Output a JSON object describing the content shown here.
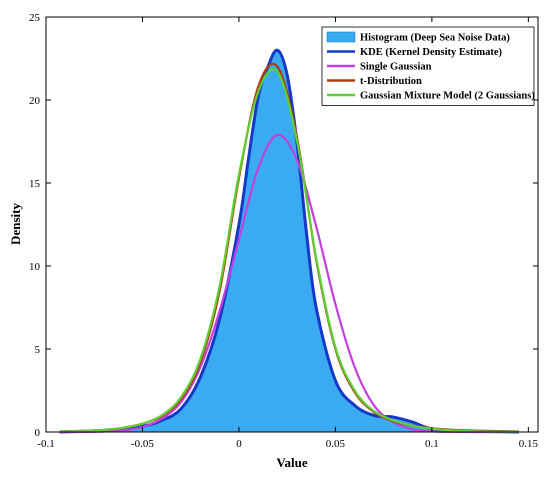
{
  "chart_data": {
    "type": "area",
    "title": "",
    "xlabel": "Value",
    "ylabel": "Density",
    "xlim": [
      -0.1,
      0.155
    ],
    "ylim": [
      0,
      25
    ],
    "x_ticks": [
      -0.1,
      -0.05,
      0,
      0.05,
      0.1,
      0.15
    ],
    "x_tick_labels": [
      "-0.1",
      "-0.05",
      "0",
      "0.05",
      "0.1",
      "0.15"
    ],
    "y_ticks": [
      0,
      5,
      10,
      15,
      20,
      25
    ],
    "y_tick_labels": [
      "0",
      "5",
      "10",
      "15",
      "20",
      "25"
    ],
    "grid": false,
    "legend_position": "top-right",
    "series": [
      {
        "name": "Histogram (Deep Sea Noise Data)",
        "kind": "histogram",
        "color": "#3aabf0",
        "x": [
          -0.093,
          -0.07,
          -0.05,
          -0.04,
          -0.03,
          -0.02,
          -0.01,
          0.0,
          0.005,
          0.01,
          0.015,
          0.02,
          0.025,
          0.03,
          0.035,
          0.04,
          0.05,
          0.06,
          0.07,
          0.08,
          0.09,
          0.1,
          0.12,
          0.145
        ],
        "y": [
          0.0,
          0.1,
          0.35,
          0.7,
          1.4,
          3.3,
          6.8,
          12.5,
          16.5,
          20.2,
          22.0,
          23.0,
          21.5,
          17.5,
          12.0,
          7.5,
          3.1,
          1.6,
          1.0,
          0.9,
          0.6,
          0.2,
          0.05,
          0.0
        ]
      },
      {
        "name": "KDE (Kernel Density Estimate)",
        "kind": "line",
        "color": "#1538c8",
        "x": [
          -0.093,
          -0.07,
          -0.05,
          -0.04,
          -0.03,
          -0.02,
          -0.01,
          0.0,
          0.005,
          0.01,
          0.015,
          0.02,
          0.025,
          0.03,
          0.035,
          0.04,
          0.05,
          0.06,
          0.07,
          0.08,
          0.09,
          0.1,
          0.12,
          0.145
        ],
        "y": [
          0.0,
          0.1,
          0.35,
          0.7,
          1.4,
          3.3,
          6.8,
          12.5,
          16.5,
          20.2,
          22.0,
          23.0,
          21.5,
          17.5,
          12.0,
          7.5,
          3.1,
          1.6,
          1.0,
          0.9,
          0.6,
          0.2,
          0.05,
          0.0
        ]
      },
      {
        "name": "Single Gaussian",
        "kind": "line",
        "color": "#c040e0",
        "x": [
          -0.093,
          -0.08,
          -0.07,
          -0.06,
          -0.05,
          -0.04,
          -0.03,
          -0.02,
          -0.01,
          0.0,
          0.01,
          0.02,
          0.03,
          0.04,
          0.05,
          0.06,
          0.07,
          0.08,
          0.09,
          0.1,
          0.11,
          0.12,
          0.13,
          0.145
        ],
        "y": [
          0.0,
          0.01,
          0.03,
          0.1,
          0.3,
          0.8,
          1.8,
          3.9,
          7.3,
          11.6,
          15.9,
          17.9,
          16.4,
          12.4,
          7.7,
          3.9,
          1.6,
          0.6,
          0.16,
          0.04,
          0.01,
          0.0,
          0.0,
          0.0
        ]
      },
      {
        "name": "t-Distribution",
        "kind": "line",
        "color": "#b03a10",
        "x": [
          -0.093,
          -0.08,
          -0.07,
          -0.06,
          -0.05,
          -0.04,
          -0.03,
          -0.02,
          -0.01,
          0.0,
          0.01,
          0.02,
          0.03,
          0.04,
          0.05,
          0.06,
          0.07,
          0.08,
          0.09,
          0.1,
          0.11,
          0.12,
          0.13,
          0.145
        ],
        "y": [
          0.03,
          0.07,
          0.12,
          0.25,
          0.5,
          0.95,
          2.0,
          4.2,
          8.5,
          15.3,
          20.8,
          22.0,
          17.8,
          10.4,
          5.0,
          2.4,
          1.2,
          0.65,
          0.38,
          0.22,
          0.14,
          0.09,
          0.06,
          0.03
        ]
      },
      {
        "name": "Gaussian Mixture Model (2 Gaussians)",
        "kind": "line",
        "color": "#5fd033",
        "x": [
          -0.093,
          -0.08,
          -0.07,
          -0.06,
          -0.05,
          -0.04,
          -0.03,
          -0.02,
          -0.01,
          0.0,
          0.01,
          0.02,
          0.03,
          0.04,
          0.05,
          0.06,
          0.07,
          0.08,
          0.09,
          0.1,
          0.11,
          0.12,
          0.13,
          0.145
        ],
        "y": [
          0.03,
          0.06,
          0.12,
          0.25,
          0.5,
          1.0,
          2.1,
          4.4,
          8.8,
          15.5,
          20.5,
          21.7,
          17.6,
          10.5,
          5.1,
          2.5,
          1.25,
          0.7,
          0.38,
          0.2,
          0.1,
          0.05,
          0.02,
          0.01
        ]
      }
    ]
  }
}
